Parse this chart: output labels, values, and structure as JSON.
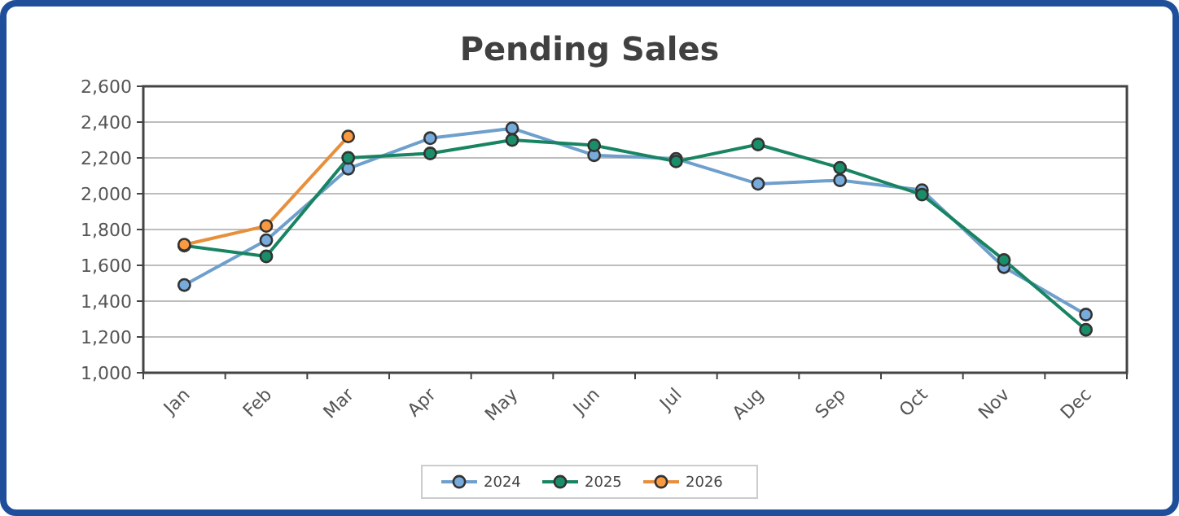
{
  "chart_data": {
    "type": "line",
    "title": "Pending Sales",
    "categories": [
      "Jan",
      "Feb",
      "Mar",
      "Apr",
      "May",
      "Jun",
      "Jul",
      "Aug",
      "Sep",
      "Oct",
      "Nov",
      "Dec"
    ],
    "series": [
      {
        "name": "2024",
        "color": "#6f9fcc",
        "values": [
          1490,
          1740,
          2140,
          2310,
          2365,
          2215,
          2195,
          2055,
          2075,
          2020,
          1590,
          1325
        ]
      },
      {
        "name": "2025",
        "color": "#188462",
        "values": [
          1710,
          1650,
          2200,
          2225,
          2300,
          2270,
          2180,
          2275,
          2145,
          1995,
          1630,
          1240
        ]
      },
      {
        "name": "2026",
        "color": "#e88f3c",
        "values": [
          1715,
          1820,
          2320,
          null,
          null,
          null,
          null,
          null,
          null,
          null,
          null,
          null
        ]
      }
    ],
    "ylim": [
      1000,
      2600
    ],
    "yticks": [
      {
        "value": 1000,
        "label": "1,000"
      },
      {
        "value": 1200,
        "label": "1,200"
      },
      {
        "value": 1400,
        "label": "1,400"
      },
      {
        "value": 1600,
        "label": "1,600"
      },
      {
        "value": 1800,
        "label": "1,800"
      },
      {
        "value": 2000,
        "label": "2,000"
      },
      {
        "value": 2200,
        "label": "2,200"
      },
      {
        "value": 2400,
        "label": "2,400"
      },
      {
        "value": 2600,
        "label": "2,600"
      }
    ],
    "grid": "y",
    "legend": "bottom",
    "marker": "circle",
    "line_style": "solid"
  }
}
